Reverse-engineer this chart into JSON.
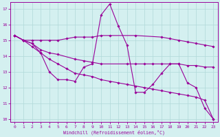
{
  "xlabel": "Windchill (Refroidissement éolien,°C)",
  "bg_color": "#d4f0f0",
  "grid_color": "#b0d8d8",
  "line_color": "#990099",
  "xmin": 0,
  "xmax": 23,
  "ymin": 10,
  "ymax": 17,
  "yticks": [
    10,
    11,
    12,
    13,
    14,
    15,
    16,
    17
  ],
  "xticks": [
    0,
    1,
    2,
    3,
    4,
    5,
    6,
    7,
    8,
    9,
    10,
    11,
    12,
    13,
    14,
    15,
    16,
    17,
    18,
    19,
    20,
    21,
    22,
    23
  ],
  "lines": [
    {
      "x": [
        0,
        1,
        2,
        3,
        4,
        5,
        6,
        7,
        8,
        9,
        10,
        11,
        12,
        13,
        14,
        15,
        16,
        17,
        18,
        19,
        20,
        21,
        22,
        23
      ],
      "y": [
        15.3,
        15.0,
        14.8,
        14.2,
        13.0,
        12.5,
        12.5,
        12.4,
        13.3,
        13.5,
        16.6,
        17.3,
        15.9,
        14.7,
        11.7,
        11.7,
        12.2,
        12.9,
        13.5,
        13.5,
        12.3,
        12.0,
        10.7,
        10.0
      ]
    },
    {
      "x": [
        0,
        1,
        2,
        3,
        4,
        5,
        6,
        7,
        8,
        9,
        10,
        11,
        14,
        17,
        18,
        19,
        20,
        21,
        22,
        23
      ],
      "y": [
        15.3,
        15.0,
        15.0,
        15.0,
        15.0,
        15.0,
        15.1,
        15.2,
        15.2,
        15.2,
        15.3,
        15.3,
        15.3,
        15.2,
        15.1,
        15.0,
        14.9,
        14.8,
        14.7,
        14.6
      ]
    },
    {
      "x": [
        0,
        1,
        2,
        3,
        4,
        5,
        7,
        8,
        9,
        10,
        13,
        14,
        15,
        16,
        17,
        18,
        19,
        20,
        21,
        22,
        23
      ],
      "y": [
        15.3,
        15.0,
        14.8,
        14.4,
        14.2,
        14.1,
        13.8,
        13.7,
        13.6,
        13.5,
        13.5,
        13.5,
        13.5,
        13.5,
        13.5,
        13.5,
        13.5,
        13.4,
        13.4,
        13.3,
        13.3
      ]
    },
    {
      "x": [
        0,
        1,
        2,
        3,
        4,
        5,
        6,
        7,
        8,
        9,
        10,
        11,
        12,
        13,
        14,
        15,
        16,
        17,
        18,
        19,
        20,
        21,
        22,
        23
      ],
      "y": [
        15.3,
        15.0,
        14.6,
        14.2,
        13.8,
        13.5,
        13.2,
        12.9,
        12.8,
        12.7,
        12.5,
        12.4,
        12.3,
        12.2,
        12.1,
        12.0,
        11.9,
        11.8,
        11.7,
        11.6,
        11.5,
        11.4,
        11.2,
        10.0
      ]
    }
  ]
}
